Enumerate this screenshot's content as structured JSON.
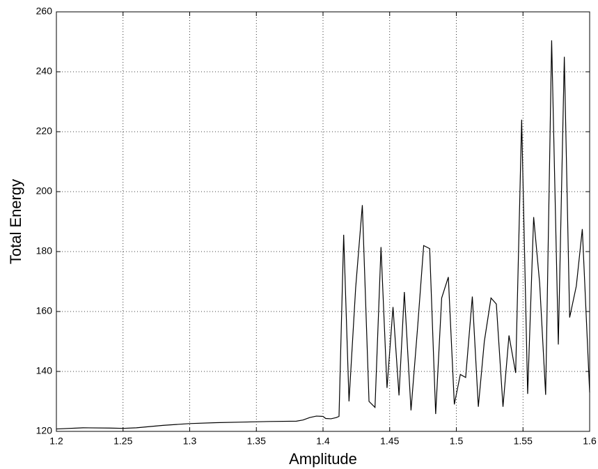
{
  "chart_data": {
    "type": "line",
    "xlabel": "Amplitude",
    "ylabel": "Total Energy",
    "x": [
      1.2,
      1.22,
      1.24,
      1.25,
      1.26,
      1.28,
      1.3,
      1.32,
      1.34,
      1.36,
      1.38,
      1.385,
      1.39,
      1.395,
      1.4,
      1.402,
      1.406,
      1.41,
      1.412,
      1.4155,
      1.4195,
      1.4245,
      1.4295,
      1.4345,
      1.439,
      1.4435,
      1.448,
      1.4525,
      1.457,
      1.461,
      1.466,
      1.471,
      1.4755,
      1.48,
      1.4845,
      1.489,
      1.494,
      1.4985,
      1.503,
      1.507,
      1.512,
      1.5165,
      1.521,
      1.526,
      1.53,
      1.535,
      1.5395,
      1.5445,
      1.549,
      1.5535,
      1.558,
      1.5625,
      1.567,
      1.5715,
      1.5765,
      1.581,
      1.585,
      1.59,
      1.5945,
      1.6
    ],
    "values": [
      120.8,
      121.2,
      121.1,
      121.0,
      121.2,
      122.0,
      122.6,
      122.9,
      123.1,
      123.3,
      123.4,
      123.8,
      124.6,
      125.1,
      125.0,
      124.3,
      124.2,
      124.6,
      125.0,
      185.6,
      130,
      168,
      195.5,
      130,
      128,
      181.5,
      134.5,
      161.5,
      132,
      166.5,
      127,
      155,
      182,
      181,
      125.8,
      164.5,
      171.5,
      129,
      139,
      138,
      165,
      128.2,
      150,
      164.5,
      162.5,
      128.2,
      152,
      139.5,
      224,
      132.5,
      191.5,
      169.5,
      132.2,
      250.5,
      149,
      245,
      158,
      168.5,
      187.5,
      133
    ],
    "color": "#000000",
    "xlim": [
      1.2,
      1.6
    ],
    "xticks": [
      1.2,
      1.25,
      1.3,
      1.35,
      1.4,
      1.45,
      1.5,
      1.55,
      1.6
    ],
    "ylim": [
      120,
      260
    ],
    "yticks": [
      120,
      140,
      160,
      180,
      200,
      220,
      240,
      260
    ],
    "grid": true
  }
}
